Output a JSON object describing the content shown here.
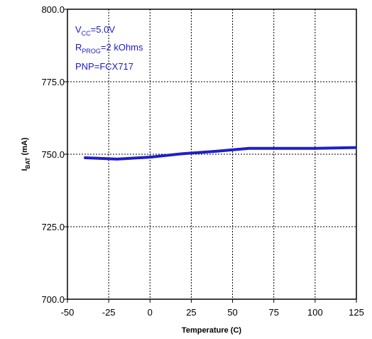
{
  "chart_data": {
    "type": "line",
    "title": "",
    "xlabel": "Temperature (C)",
    "ylabel": {
      "main": "I",
      "sub": "BAT",
      "rest": " (mA)"
    },
    "xlim": [
      -50,
      125
    ],
    "ylim": [
      700,
      800
    ],
    "x_ticks": [
      -50,
      -25,
      0,
      25,
      50,
      75,
      100,
      125
    ],
    "x_tick_labels": [
      "-50",
      "-25",
      "0",
      "25",
      "50",
      "75",
      "100",
      "125"
    ],
    "y_ticks": [
      700,
      725,
      750,
      775,
      800
    ],
    "y_tick_labels": [
      "700.0",
      "725.0",
      "750.0",
      "775.0",
      "800.0"
    ],
    "grid": true,
    "series": [
      {
        "color": "#1f1fc8",
        "x": [
          -40,
          -20,
          0,
          20,
          40,
          60,
          80,
          100,
          125
        ],
        "y": [
          748.8,
          748.3,
          749.0,
          750.2,
          751.0,
          752.0,
          752.0,
          752.0,
          752.3
        ]
      }
    ],
    "annotations": [
      {
        "main": "V",
        "sub": "CC",
        "rest": "=5.0V"
      },
      {
        "main": "R",
        "sub": "PROG",
        "rest": "=2 kOhms"
      },
      {
        "main": "PNP=FCX717",
        "sub": "",
        "rest": ""
      }
    ],
    "annotation_color": "#1a1acc"
  }
}
